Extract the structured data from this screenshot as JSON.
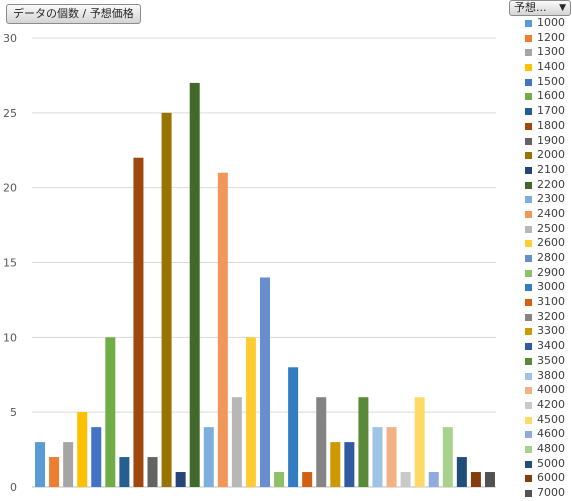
{
  "field_button_label": "データの個数 / 予想価格",
  "legend_filter": {
    "label": "予想...",
    "arrow": "▼"
  },
  "chart_data": {
    "type": "bar",
    "title": "",
    "xlabel": "",
    "ylabel": "",
    "ylim": [
      0,
      30
    ],
    "yticks": [
      0,
      5,
      10,
      15,
      20,
      25,
      30
    ],
    "grid": true,
    "legend_position": "right",
    "categories": [
      "1000",
      "1200",
      "1300",
      "1400",
      "1500",
      "1600",
      "1700",
      "1800",
      "1900",
      "2000",
      "2100",
      "2200",
      "2300",
      "2400",
      "2500",
      "2600",
      "2800",
      "2900",
      "3000",
      "3100",
      "3200",
      "3300",
      "3400",
      "3500",
      "3800",
      "4000",
      "4200",
      "4500",
      "4600",
      "4800",
      "5000",
      "6000",
      "7000"
    ],
    "values": [
      3,
      2,
      3,
      5,
      4,
      10,
      2,
      22,
      2,
      25,
      1,
      27,
      4,
      21,
      6,
      10,
      14,
      1,
      8,
      1,
      6,
      3,
      3,
      6,
      4,
      4,
      1,
      6,
      1,
      4,
      2,
      1,
      1
    ],
    "colors": [
      "#5b9bd5",
      "#ed7d31",
      "#a5a5a5",
      "#ffc000",
      "#4472c4",
      "#70ad47",
      "#255e91",
      "#9e480e",
      "#636363",
      "#997300",
      "#264478",
      "#43682b",
      "#7cafdd",
      "#f1975a",
      "#b7b7b7",
      "#ffcd33",
      "#698ed0",
      "#8cc168",
      "#327dc2",
      "#d26012",
      "#848484",
      "#cc9a00",
      "#335aa1",
      "#5a8a39",
      "#9dc3e6",
      "#f4b183",
      "#c9c9c9",
      "#ffd966",
      "#8faadc",
      "#a9d18e",
      "#1f4e79",
      "#843c0c",
      "#525252"
    ]
  }
}
